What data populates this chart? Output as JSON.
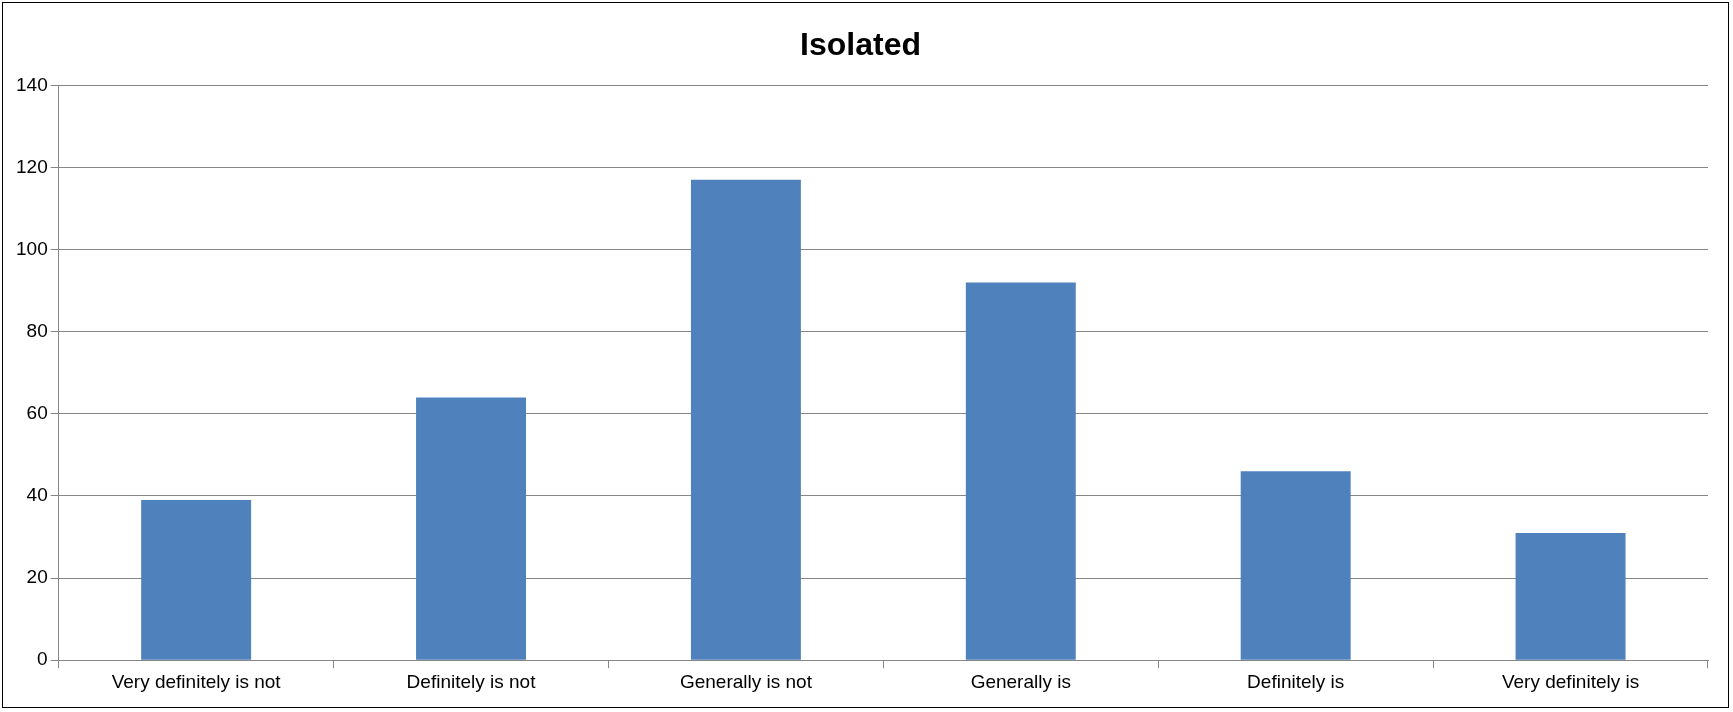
{
  "chart_data": {
    "type": "bar",
    "title": "Isolated",
    "categories": [
      "Very definitely is not",
      "Definitely is not",
      "Generally is not",
      "Generally is",
      "Definitely is",
      "Very definitely is"
    ],
    "values": [
      39,
      64,
      117,
      92,
      46,
      31
    ],
    "color": "#4f81bd",
    "ylim": [
      0,
      140
    ],
    "yticks": [
      0,
      20,
      40,
      60,
      80,
      100,
      120,
      140
    ],
    "grid": "y"
  }
}
